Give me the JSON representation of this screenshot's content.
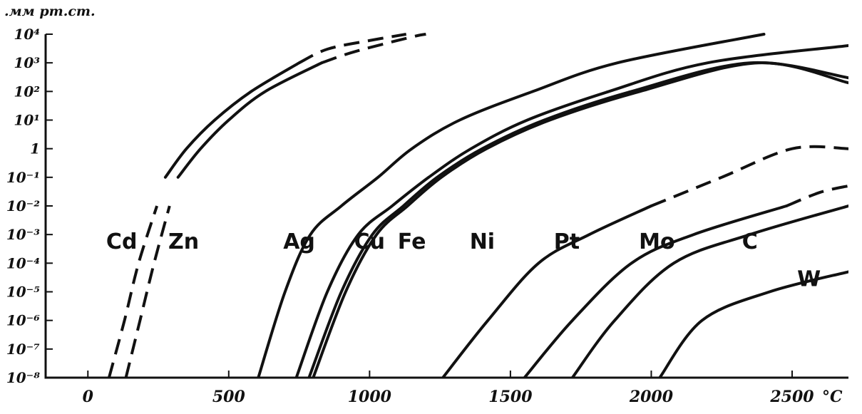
{
  "chart_data": {
    "type": "line",
    "y_unit_label": ".мм рт.ст.",
    "x_unit_label": "°C",
    "y_scale": "log",
    "ylim": [
      1e-08,
      10000.0
    ],
    "xlim": [
      -150,
      2700
    ],
    "grid": false,
    "y_ticks": [
      "10⁴",
      "10³",
      "10²",
      "10¹",
      "1",
      "10⁻¹",
      "10⁻²",
      "10⁻³",
      "10⁻⁴",
      "10⁻⁵",
      "10⁻⁶",
      "10⁻⁷",
      "10⁻⁸"
    ],
    "y_tick_values": [
      10000.0,
      1000.0,
      100.0,
      10.0,
      1,
      0.1,
      0.01,
      0.001,
      0.0001,
      1e-05,
      1e-06,
      1e-07,
      1e-08
    ],
    "x_ticks": [
      "0",
      "500",
      "1000",
      "1500",
      "2000",
      "2500"
    ],
    "x_tick_values": [
      0,
      500,
      1000,
      1500,
      2000,
      2500
    ],
    "series": [
      {
        "name": "Cd",
        "label_at": [
          120,
          0.001
        ],
        "dashed_points": [
          [
            75,
            1e-08
          ],
          [
            130,
            1e-06
          ],
          [
            180,
            0.0001
          ],
          [
            245,
            0.01
          ]
        ],
        "solid_points": [
          [
            275,
            0.1
          ],
          [
            350,
            1
          ],
          [
            450,
            10.0
          ],
          [
            580,
            100.0
          ],
          [
            750,
            1000.0
          ]
        ],
        "dashed_tail": [
          [
            750,
            1000.0
          ],
          [
            850,
            3000.0
          ],
          [
            1000,
            6000.0
          ],
          [
            1130,
            10000.0
          ]
        ]
      },
      {
        "name": "Zn",
        "label_at": [
          340,
          0.001
        ],
        "dashed_points": [
          [
            135,
            1e-08
          ],
          [
            185,
            1e-06
          ],
          [
            235,
            0.0001
          ],
          [
            290,
            0.01
          ]
        ],
        "solid_points": [
          [
            320,
            0.1
          ],
          [
            400,
            1
          ],
          [
            500,
            10.0
          ],
          [
            630,
            100.0
          ],
          [
            830,
            1000.0
          ]
        ],
        "dashed_tail": [
          [
            830,
            1000.0
          ],
          [
            950,
            2500.0
          ],
          [
            1150,
            8000.0
          ],
          [
            1200,
            10000.0
          ]
        ]
      },
      {
        "name": "Ag",
        "label_at": [
          750,
          0.001
        ],
        "solid_points": [
          [
            605,
            1e-08
          ],
          [
            700,
            1e-05
          ],
          [
            790,
            0.001
          ],
          [
            900,
            0.01
          ],
          [
            1030,
            0.1
          ],
          [
            1150,
            1
          ],
          [
            1320,
            10.0
          ],
          [
            1580,
            100.0
          ],
          [
            1880,
            1000.0
          ],
          [
            2400,
            10000.0
          ]
        ]
      },
      {
        "name": "Cu",
        "label_at": [
          1000,
          0.001
        ],
        "solid_points": [
          [
            740,
            1e-08
          ],
          [
            850,
            1e-05
          ],
          [
            960,
            0.001
          ],
          [
            1080,
            0.01
          ],
          [
            1210,
            0.1
          ],
          [
            1360,
            1
          ],
          [
            1560,
            10.0
          ],
          [
            1850,
            100.0
          ],
          [
            2200,
            1000.0
          ],
          [
            2700,
            4000.0
          ]
        ]
      },
      {
        "name": "Fe",
        "label_at": [
          1150,
          0.001
        ],
        "solid_points": [
          [
            785,
            1e-08
          ],
          [
            900,
            1e-05
          ],
          [
            1010,
            0.001
          ],
          [
            1120,
            0.01
          ],
          [
            1240,
            0.1
          ],
          [
            1400,
            1
          ],
          [
            1620,
            10.0
          ],
          [
            1930,
            100.0
          ],
          [
            2350,
            1000.0
          ],
          [
            2700,
            300.0
          ]
        ]
      },
      {
        "name": "Ni",
        "label_at": [
          1400,
          0.001
        ],
        "solid_points": [
          [
            800,
            1e-08
          ],
          [
            915,
            1e-05
          ],
          [
            1025,
            0.001
          ],
          [
            1135,
            0.01
          ],
          [
            1255,
            0.1
          ],
          [
            1415,
            1
          ],
          [
            1640,
            10.0
          ],
          [
            1960,
            100.0
          ],
          [
            2380,
            1000.0
          ],
          [
            2700,
            200.0
          ]
        ]
      },
      {
        "name": "Pt",
        "label_at": [
          1700,
          0.001
        ],
        "solid_points": [
          [
            1260,
            1e-08
          ],
          [
            1420,
            1e-06
          ],
          [
            1600,
            0.0001
          ],
          [
            1780,
            0.001
          ],
          [
            2000,
            0.01
          ]
        ],
        "dashed_tail": [
          [
            2000,
            0.01
          ],
          [
            2250,
            0.1
          ],
          [
            2500,
            1.0
          ],
          [
            2700,
            1.0
          ]
        ]
      },
      {
        "name": "Mo",
        "label_at": [
          2020,
          0.001
        ],
        "solid_points": [
          [
            1550,
            1e-08
          ],
          [
            1720,
            1e-06
          ],
          [
            1930,
            0.0001
          ],
          [
            2150,
            0.001
          ],
          [
            2480,
            0.01
          ]
        ],
        "dashed_tail": [
          [
            2480,
            0.01
          ],
          [
            2600,
            0.03
          ],
          [
            2700,
            0.05
          ]
        ]
      },
      {
        "name": "C",
        "label_at": [
          2350,
          0.001
        ],
        "solid_points": [
          [
            1720,
            1e-08
          ],
          [
            1870,
            1e-06
          ],
          [
            2080,
            0.0001
          ],
          [
            2350,
            0.001
          ],
          [
            2700,
            0.01
          ]
        ]
      },
      {
        "name": "W",
        "label_at": [
          2560,
          5e-05
        ],
        "solid_points": [
          [
            2030,
            1e-08
          ],
          [
            2180,
            1e-06
          ],
          [
            2420,
            1e-05
          ],
          [
            2700,
            5e-05
          ]
        ]
      }
    ]
  }
}
